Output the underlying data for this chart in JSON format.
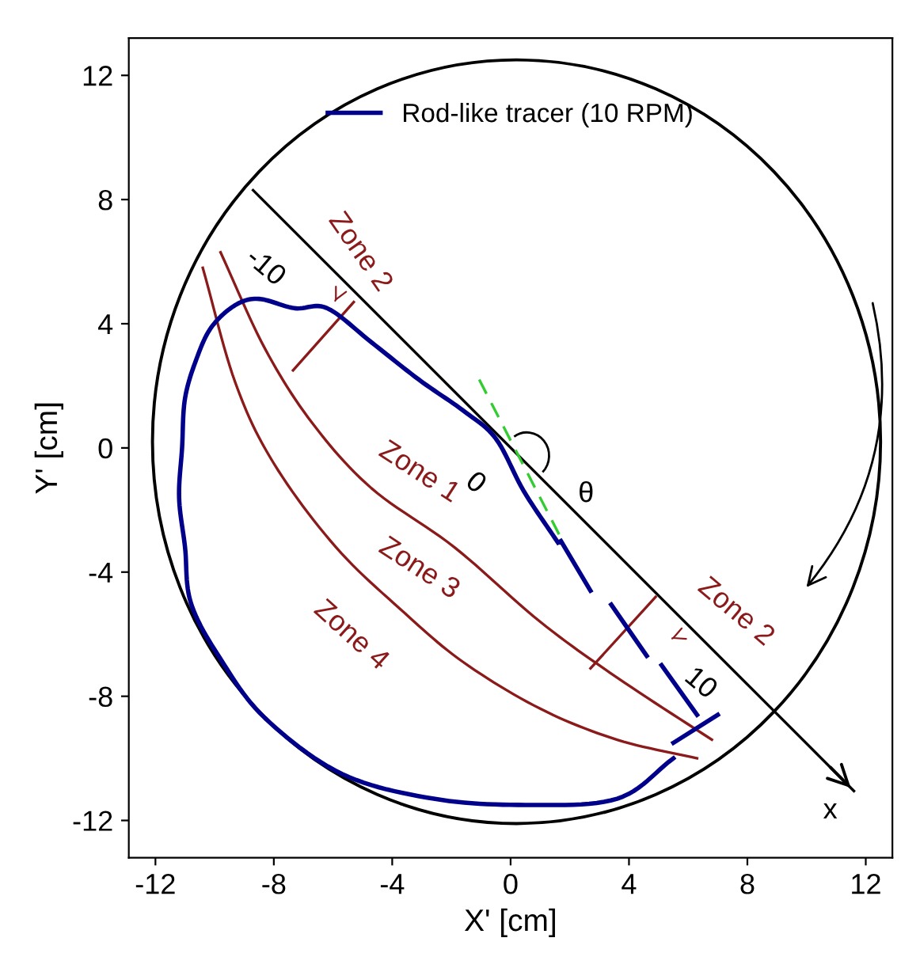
{
  "chart_data": {
    "type": "line",
    "xlabel": "X' [cm]",
    "ylabel": "Y' [cm]",
    "xlim": [
      -12.9,
      12.9
    ],
    "ylim": [
      -13.2,
      13.2
    ],
    "xticks": [
      -12,
      -8,
      -4,
      0,
      4,
      8,
      12
    ],
    "yticks": [
      -12,
      -8,
      -4,
      0,
      4,
      8,
      12
    ],
    "grid": false,
    "legend": "top",
    "marker": "none",
    "line_style": "solid",
    "series": [
      {
        "color": "#000000",
        "x": [
          -8.7,
          11.6
        ],
        "values": [
          8.3,
          -11.05
        ]
      },
      {
        "color": "#8b1a1a",
        "x": [
          -10.4,
          -9.3,
          -8.0,
          -5.9,
          -3.6,
          -1.6,
          1.0,
          3.6,
          6.3
        ],
        "values": [
          5.8,
          2.1,
          -0.5,
          -3.2,
          -5.3,
          -6.9,
          -8.4,
          -9.4,
          -10.0
        ]
      },
      {
        "color": "#8b1a1a",
        "x": [
          -9.8,
          -8.3,
          -6.7,
          -4.7,
          -1.9,
          1.0,
          3.6,
          6.8
        ],
        "values": [
          6.3,
          3.2,
          0.8,
          -1.3,
          -3.2,
          -5.6,
          -7.4,
          -9.4
        ]
      },
      {
        "color": "#8b1a1a",
        "x": [
          -7.35,
          -5.3,
          null,
          2.7,
          4.9
        ],
        "values": [
          2.5,
          4.7,
          null,
          -7.1,
          -4.8
        ]
      },
      {
        "color": "#33cc33",
        "line_style": "dashed",
        "x": [
          -1.06,
          1.7
        ],
        "values": [
          2.2,
          -2.9
        ]
      },
      {
        "name": "Rod-like tracer (10 RPM)",
        "color": "#00008b",
        "x": [
          5.5,
          3.6,
          0.5,
          -2.6,
          -5.7,
          -8.3,
          -9.8,
          -10.8,
          -11.0,
          -11.2,
          -11.1,
          -11.0,
          -10.6,
          -10.1,
          -9.3,
          -8.5,
          -7.3,
          -6.2,
          -4.7,
          -3.1,
          -1.6,
          -0.5,
          0.45,
          1.6,
          null,
          1.7,
          2.7,
          null,
          3.4,
          4.6,
          null,
          5.1,
          6.3,
          null,
          5.5,
          7.0
        ],
        "values": [
          -10.0,
          -11.3,
          -11.5,
          -11.3,
          -10.5,
          -8.7,
          -6.8,
          -5.0,
          -3.2,
          -1.6,
          0.0,
          1.6,
          2.9,
          3.9,
          4.6,
          4.8,
          4.5,
          4.5,
          3.4,
          2.2,
          1.2,
          0.3,
          -1.4,
          -3.05,
          null,
          -3.0,
          -4.6,
          null,
          -5.05,
          -6.7,
          null,
          -7.0,
          -8.6,
          null,
          -9.5,
          -8.6
        ]
      }
    ],
    "annotations": [
      "Zone 1",
      "Zone 3",
      "Zone 4",
      "Zone 2",
      "Zone 2",
      "-10",
      "0",
      "10",
      "x",
      "θ"
    ]
  }
}
